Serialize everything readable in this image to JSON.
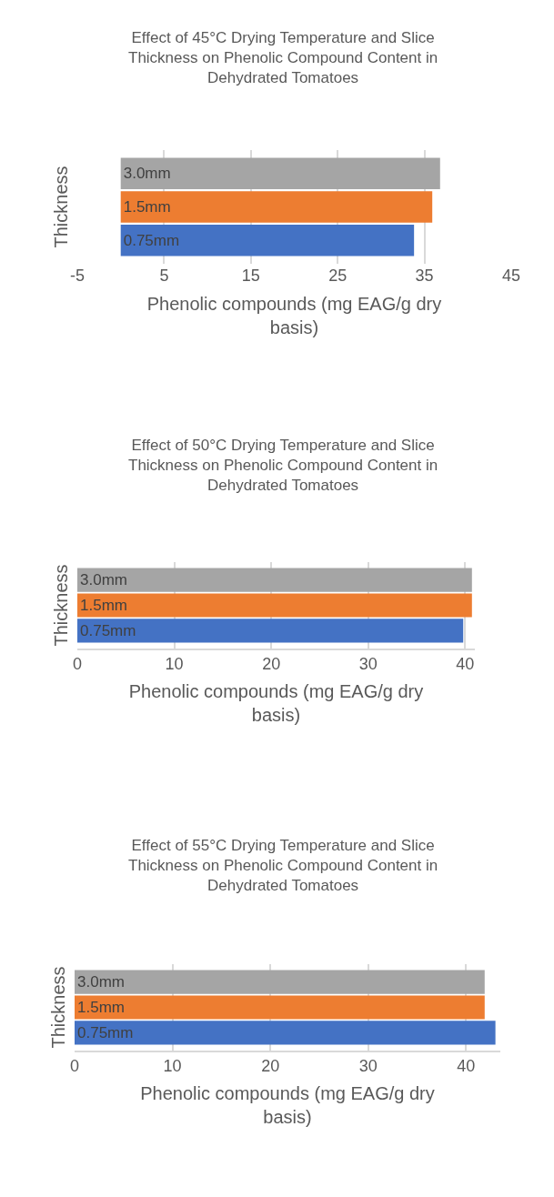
{
  "chart_data": [
    {
      "type": "bar",
      "orientation": "horizontal",
      "title": "Effect of 45°C Drying Temperature and Slice Thickness on Phenolic Compound Content in Dehydrated Tomatoes",
      "xlabel": "Phenolic compounds (mg EAG/g dry basis)",
      "ylabel": "Thickness",
      "categories": [
        null
      ],
      "series": [
        {
          "name": "0.75mm",
          "color": "#4472c4",
          "values": [
            33.8
          ]
        },
        {
          "name": "1.5mm",
          "color": "#ed7d31",
          "values": [
            35.9
          ]
        },
        {
          "name": "3.0mm",
          "color": "#a5a5a5",
          "values": [
            36.8
          ]
        }
      ],
      "xlim": [
        -5,
        45
      ],
      "xticks": [
        -5,
        5,
        15,
        25,
        35,
        45
      ],
      "grid": "x"
    },
    {
      "type": "bar",
      "orientation": "horizontal",
      "title": "Effect of 50°C Drying Temperature and Slice Thickness on Phenolic Compound Content in Dehydrated Tomatoes",
      "xlabel": "Phenolic compounds (mg EAG/g dry basis)",
      "ylabel": "Thickness",
      "categories": [
        null
      ],
      "series": [
        {
          "name": "0.75mm",
          "color": "#4472c4",
          "values": [
            39.8
          ]
        },
        {
          "name": "1.5mm",
          "color": "#ed7d31",
          "values": [
            40.7
          ]
        },
        {
          "name": "3.0mm",
          "color": "#a5a5a5",
          "values": [
            40.7
          ]
        }
      ],
      "xlim": [
        0,
        41
      ],
      "xticks": [
        0,
        10,
        20,
        30,
        40
      ],
      "grid": "x"
    },
    {
      "type": "bar",
      "orientation": "horizontal",
      "title": "Effect of 55°C Drying Temperature and Slice Thickness on Phenolic Compound Content in Dehydrated Tomatoes",
      "xlabel": "Phenolic compounds (mg EAG/g dry basis)",
      "ylabel": "Thickness",
      "categories": [
        null
      ],
      "series": [
        {
          "name": "0.75mm",
          "color": "#4472c4",
          "values": [
            43.0
          ]
        },
        {
          "name": "1.5mm",
          "color": "#ed7d31",
          "values": [
            41.9
          ]
        },
        {
          "name": "3.0mm",
          "color": "#a5a5a5",
          "values": [
            41.9
          ]
        }
      ],
      "xlim": [
        0,
        43.5
      ],
      "xticks": [
        0,
        10,
        20,
        30,
        40
      ],
      "grid": "x"
    }
  ]
}
